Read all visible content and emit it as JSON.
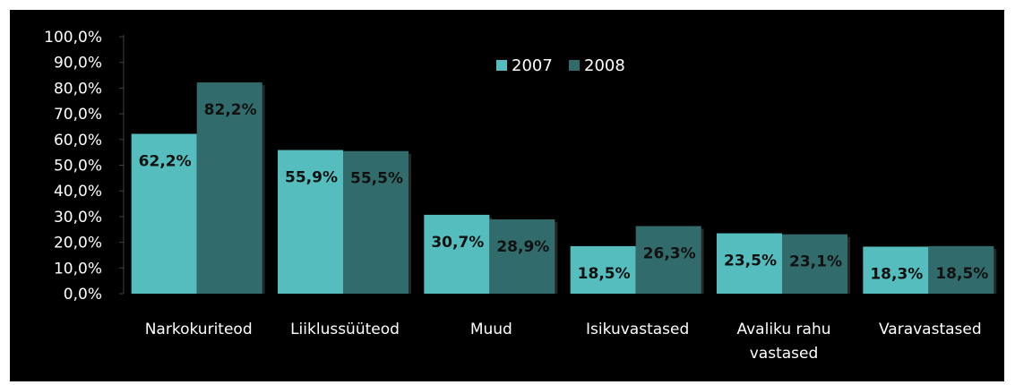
{
  "chart_data": {
    "type": "bar",
    "categories": [
      [
        "Narkokuriteod"
      ],
      [
        "Liiklussüüteod"
      ],
      [
        "Muud"
      ],
      [
        "Isikuvastased"
      ],
      [
        "Avaliku rahu",
        "vastased"
      ],
      [
        "Varavastased"
      ]
    ],
    "series": [
      {
        "name": "2007",
        "color": "#55bdbd",
        "values": [
          62.2,
          55.9,
          30.7,
          18.5,
          23.5,
          18.3
        ],
        "labels": [
          "62,2%",
          "55,9%",
          "30,7%",
          "18,5%",
          "23,5%",
          "18,3%"
        ]
      },
      {
        "name": "2008",
        "color": "#326b6b",
        "values": [
          82.2,
          55.5,
          28.9,
          26.3,
          23.1,
          18.5
        ],
        "labels": [
          "82,2%",
          "55,5%",
          "28,9%",
          "26,3%",
          "23,1%",
          "18,5%"
        ]
      }
    ],
    "yticks": [
      "0,0%",
      "10,0%",
      "20,0%",
      "30,0%",
      "40,0%",
      "50,0%",
      "60,0%",
      "70,0%",
      "80,0%",
      "90,0%",
      "100,0%"
    ],
    "ylim": [
      0,
      100
    ],
    "legend_position": "top-center",
    "background": "#000000",
    "title": "",
    "xlabel": "",
    "ylabel": ""
  }
}
